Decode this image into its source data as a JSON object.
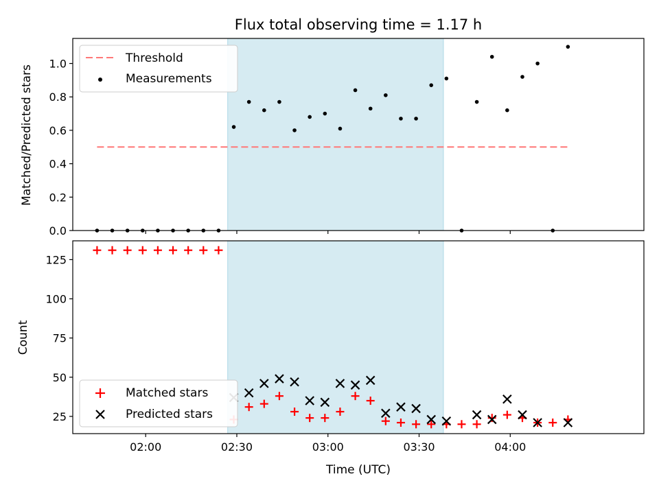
{
  "chart_data": {
    "type": "scatter",
    "title": "Flux total observing time = 1.17 h",
    "xlabel": "Time (UTC)",
    "xlim": [
      "01:36",
      "04:44"
    ],
    "x_ticks": [
      "02:00",
      "02:30",
      "03:00",
      "03:30",
      "04:00"
    ],
    "shaded_region": {
      "start": "02:27",
      "end": "03:38",
      "color": "#add8e6"
    },
    "times": [
      "01:44",
      "01:49",
      "01:54",
      "01:59",
      "02:04",
      "02:09",
      "02:14",
      "02:19",
      "02:24",
      "02:29",
      "02:34",
      "02:39",
      "02:44",
      "02:49",
      "02:54",
      "02:59",
      "03:04",
      "03:09",
      "03:14",
      "03:19",
      "03:24",
      "03:29",
      "03:34",
      "03:39",
      "03:44",
      "03:49",
      "03:54",
      "03:59",
      "04:04",
      "04:09",
      "04:14",
      "04:19"
    ],
    "top": {
      "ylabel": "Matched/Predicted stars",
      "ylim": [
        0,
        1.15
      ],
      "y_ticks": [
        "0.0",
        "0.2",
        "0.4",
        "0.6",
        "0.8",
        "1.0"
      ],
      "threshold": {
        "name": "Threshold",
        "value": 0.5,
        "color": "#ff7777"
      },
      "series": [
        {
          "name": "Measurements",
          "color": "#000000",
          "values": [
            0,
            0,
            0,
            0,
            0,
            0,
            0,
            0,
            0,
            0.62,
            0.77,
            0.72,
            0.77,
            0.6,
            0.68,
            0.7,
            0.61,
            0.84,
            0.73,
            0.81,
            0.67,
            0.67,
            0.87,
            0.91,
            0,
            0.77,
            1.04,
            0.72,
            0.92,
            1.0,
            0,
            1.1
          ]
        }
      ],
      "legend_position": "upper left"
    },
    "bottom": {
      "ylabel": "Count",
      "ylim": [
        14,
        137
      ],
      "y_ticks": [
        "25",
        "50",
        "75",
        "100",
        "125"
      ],
      "series": [
        {
          "name": "Matched stars",
          "color": "#ff0000",
          "marker": "+",
          "values": [
            131,
            131,
            131,
            131,
            131,
            131,
            131,
            131,
            131,
            23,
            31,
            33,
            38,
            28,
            24,
            24,
            28,
            38,
            35,
            22,
            21,
            20,
            20,
            20,
            20,
            20,
            24,
            26,
            24,
            21,
            21,
            23
          ]
        },
        {
          "name": "Predicted stars",
          "color": "#000000",
          "marker": "x",
          "values": [
            null,
            null,
            null,
            null,
            null,
            null,
            null,
            null,
            null,
            37,
            40,
            46,
            49,
            47,
            35,
            34,
            46,
            45,
            48,
            27,
            31,
            30,
            23,
            22,
            null,
            26,
            23,
            36,
            26,
            21,
            null,
            21
          ]
        }
      ],
      "legend_position": "lower left"
    }
  }
}
